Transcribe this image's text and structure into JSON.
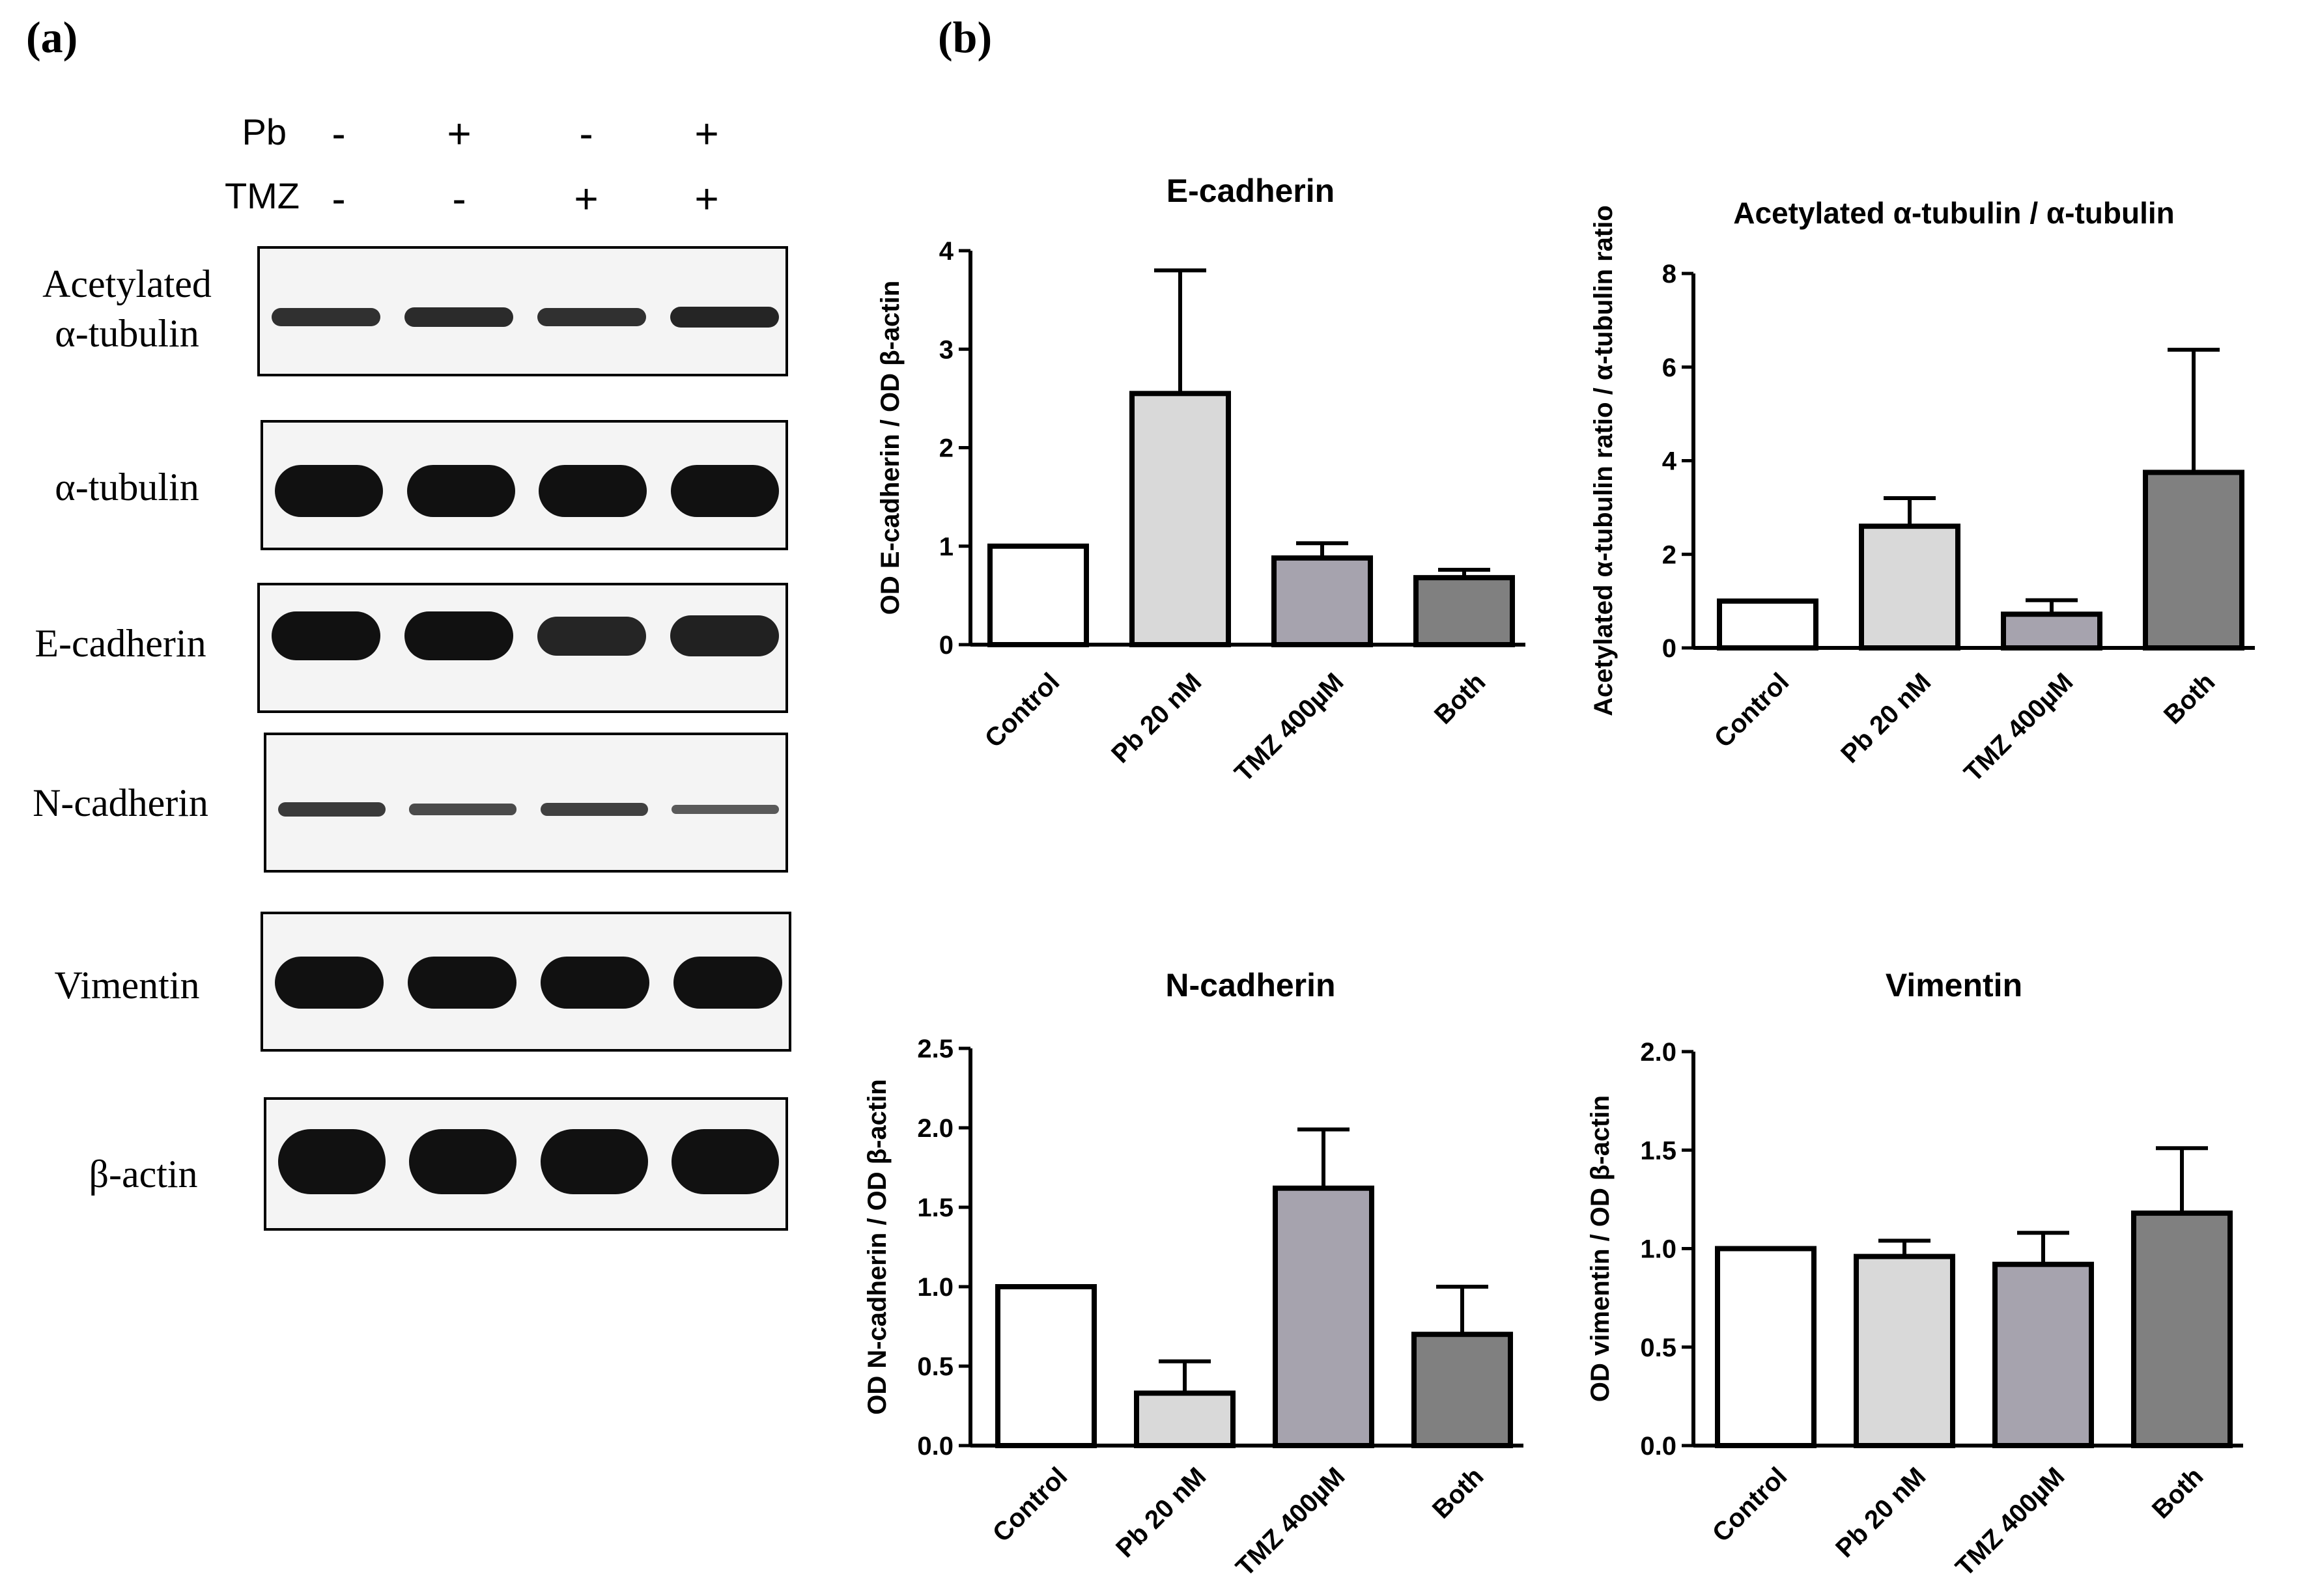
{
  "panel_a_label": "(a)",
  "panel_b_label": "(b)",
  "treatments": {
    "pb": {
      "label": "Pb",
      "signs": [
        "-",
        "+",
        "-",
        "+"
      ]
    },
    "tmz": {
      "label": "TMZ",
      "signs": [
        "-",
        "-",
        "+",
        "+"
      ]
    }
  },
  "blots": [
    {
      "label": "Acetylated\nα-tubulin",
      "band_intensity": [
        0.7,
        0.75,
        0.7,
        0.8
      ]
    },
    {
      "label": "α-tubulin",
      "band_intensity": [
        1,
        1,
        1,
        1
      ]
    },
    {
      "label": "E-cadherin",
      "band_intensity": [
        1,
        1,
        0.8,
        0.85
      ]
    },
    {
      "label": "N-cadherin",
      "band_intensity": [
        0.6,
        0.45,
        0.55,
        0.3
      ]
    },
    {
      "label": "Vimentin",
      "band_intensity": [
        1,
        1,
        1,
        1
      ]
    },
    {
      "label": "β-actin",
      "band_intensity": [
        1,
        1,
        1,
        1
      ]
    }
  ],
  "colors": {
    "control": "#ffffff",
    "pb": "#d9d9d9",
    "tmz": "#a6a3ae",
    "both": "#808080",
    "outline": "#000000"
  },
  "chart_data": [
    {
      "type": "bar",
      "title": "E-cadherin",
      "ylabel": "OD E-cadherin / OD β-actin",
      "categories": [
        "Control",
        "Pb 20 nM",
        "TMZ 400µM",
        "Both"
      ],
      "values": [
        1.0,
        2.55,
        0.88,
        0.68
      ],
      "errors": [
        0,
        1.25,
        0.15,
        0.08
      ],
      "ylim": [
        0,
        4
      ],
      "yticks": [
        "0",
        "1",
        "2",
        "3",
        "4"
      ],
      "ytick_values": [
        0,
        1,
        2,
        3,
        4
      ]
    },
    {
      "type": "bar",
      "title": "Acetylated α-tubulin / α-tubulin",
      "ylabel": "Acetylated α-tubulin ratio / α-tubulin ratio",
      "categories": [
        "Control",
        "Pb 20 nM",
        "TMZ 400µM",
        "Both"
      ],
      "values": [
        1.0,
        2.6,
        0.72,
        3.75
      ],
      "errors": [
        0,
        0.6,
        0.3,
        2.62
      ],
      "ylim": [
        0,
        8
      ],
      "yticks": [
        "0",
        "2",
        "4",
        "6",
        "8"
      ],
      "ytick_values": [
        0,
        2,
        4,
        6,
        8
      ]
    },
    {
      "type": "bar",
      "title": "N-cadherin",
      "ylabel": "OD N-cadherin / OD β-actin",
      "categories": [
        "Control",
        "Pb 20 nM",
        "TMZ 400µM",
        "Both"
      ],
      "values": [
        1.0,
        0.33,
        1.62,
        0.7
      ],
      "errors": [
        0,
        0.2,
        0.37,
        0.3
      ],
      "ylim": [
        0,
        2.5
      ],
      "yticks": [
        "0.0",
        "0.5",
        "1.0",
        "1.5",
        "2.0",
        "2.5"
      ],
      "ytick_values": [
        0,
        0.5,
        1,
        1.5,
        2,
        2.5
      ]
    },
    {
      "type": "bar",
      "title": "Vimentin",
      "ylabel": "OD vimentin / OD β-actin",
      "categories": [
        "Control",
        "Pb 20 nM",
        "TMZ 400µM",
        "Both"
      ],
      "values": [
        1.0,
        0.96,
        0.92,
        1.18
      ],
      "errors": [
        0,
        0.08,
        0.16,
        0.33
      ],
      "ylim": [
        0,
        2.0
      ],
      "yticks": [
        "0.0",
        "0.5",
        "1.0",
        "1.5",
        "2.0"
      ],
      "ytick_values": [
        0,
        0.5,
        1,
        1.5,
        2
      ]
    }
  ]
}
